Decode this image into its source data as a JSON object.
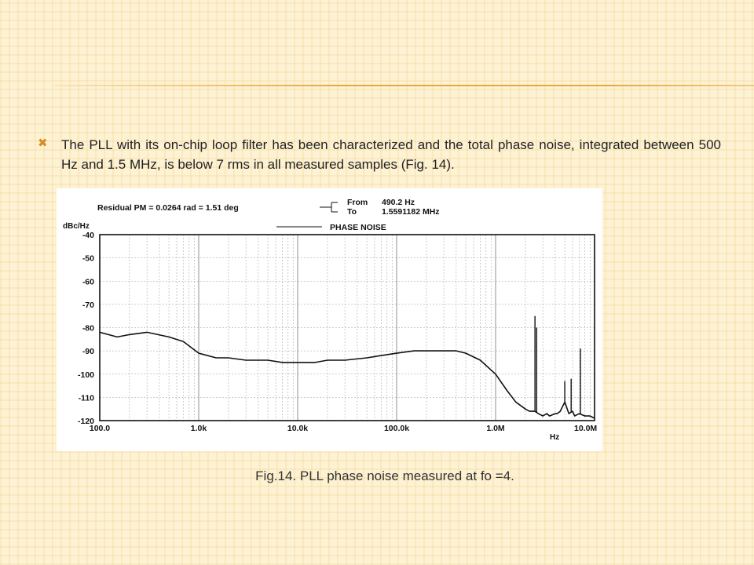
{
  "slide": {
    "bullet_icon": "x-bullet-icon",
    "bullet_text": "The PLL with its on-chip loop filter has been characterized and the total phase noise, integrated between 500 Hz and 1.5 MHz, is below 7 rms in all measured samples (Fig. 14).",
    "caption": "Fig.14. PLL phase noise measured at fo =4.",
    "colors": {
      "background": "#fdf2d4",
      "accent": "#e8a840",
      "bullet": "#d98c1e",
      "text": "#222222"
    }
  },
  "chart_data": {
    "type": "line",
    "title": "PHASE NOISE",
    "header_left": "Residual PM = 0.0264 rad = 1.51 deg",
    "header_from_label": "From",
    "header_from_value": "490.2 Hz",
    "header_to_label": "To",
    "header_to_value": "1.5591182 MHz",
    "ylabel": "dBc/Hz",
    "xlabel": "Hz",
    "xscale": "log",
    "xlim": [
      100,
      10000000
    ],
    "ylim": [
      -120,
      -40
    ],
    "grid": true,
    "legend": "top-center",
    "yticks": [
      -40,
      -50,
      -60,
      -70,
      -80,
      -90,
      -100,
      -110,
      -120
    ],
    "ytick_labels": [
      "-40",
      "-50",
      "-60",
      "-70",
      "-80",
      "-90",
      "-100",
      "-110",
      "-120"
    ],
    "xticks": [
      100,
      1000,
      10000,
      100000,
      1000000,
      10000000
    ],
    "xtick_labels": [
      "100.0",
      "1.0k",
      "10.0k",
      "100.0k",
      "1.0M",
      "10.0M"
    ],
    "series": [
      {
        "name": "PHASE NOISE",
        "x": [
          100,
          150,
          200,
          300,
          500,
          700,
          1000,
          1500,
          2000,
          3000,
          5000,
          7000,
          10000,
          15000,
          20000,
          30000,
          50000,
          70000,
          100000,
          150000,
          200000,
          300000,
          400000,
          500000,
          700000,
          1000000,
          1300000,
          1600000,
          2000000,
          2200000,
          2500000,
          2700000,
          3000000,
          3300000,
          3500000,
          4000000,
          4200000,
          4500000,
          5000000,
          5500000,
          6000000,
          6300000,
          7000000,
          8000000,
          9000000,
          10000000
        ],
        "y": [
          -82,
          -84,
          -83,
          -82,
          -84,
          -86,
          -91,
          -93,
          -93,
          -94,
          -94,
          -95,
          -95,
          -95,
          -94,
          -94,
          -93,
          -92,
          -91,
          -90,
          -90,
          -90,
          -90,
          -91,
          -94,
          -100,
          -107,
          -112,
          -115,
          -116,
          -116,
          -117,
          -118,
          -117,
          -118,
          -117,
          -117,
          -116,
          -112,
          -117,
          -116,
          -118,
          -117,
          -118,
          -118,
          -119
        ]
      }
    ],
    "spurs": [
      {
        "x": 2500000,
        "y": -75
      },
      {
        "x": 2600000,
        "y": -80
      },
      {
        "x": 5000000,
        "y": -103
      },
      {
        "x": 5800000,
        "y": -102
      },
      {
        "x": 7200000,
        "y": -89
      }
    ]
  }
}
